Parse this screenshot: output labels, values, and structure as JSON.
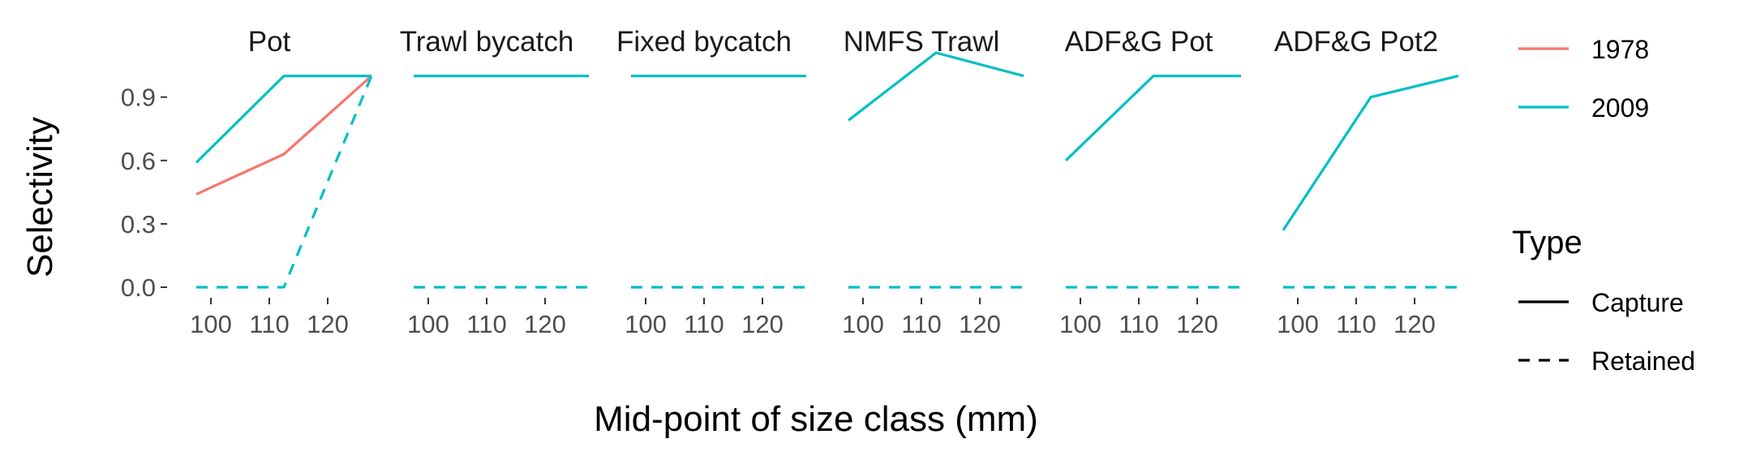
{
  "chart_data": {
    "type": "line",
    "xlabel": "Mid-point of size class (mm)",
    "ylabel": "Selectivity",
    "xlim": [
      92.5,
      127.5
    ],
    "ylim": [
      -0.05,
      1.11
    ],
    "x_ticks": [
      100,
      110,
      120
    ],
    "y_ticks": [
      0.0,
      0.3,
      0.6,
      0.9
    ],
    "y_tick_labels": [
      "0.0",
      "0.3",
      "0.6",
      "0.9"
    ],
    "grid": false,
    "x": [
      97.5,
      112.5,
      127.5
    ],
    "panels": [
      {
        "title": "Pot",
        "series": [
          {
            "year": "1978",
            "type": "Capture",
            "values": [
              0.44,
              0.63,
              1.0
            ]
          },
          {
            "year": "2009",
            "type": "Capture",
            "values": [
              0.59,
              1.0,
              1.0
            ]
          },
          {
            "year": "2009",
            "type": "Retained",
            "values": [
              0.0,
              0.0,
              1.0
            ]
          }
        ]
      },
      {
        "title": "Trawl bycatch",
        "series": [
          {
            "year": "2009",
            "type": "Capture",
            "values": [
              1.0,
              1.0,
              1.0
            ]
          },
          {
            "year": "2009",
            "type": "Retained",
            "values": [
              0.0,
              0.0,
              0.0
            ]
          }
        ]
      },
      {
        "title": "Fixed bycatch",
        "series": [
          {
            "year": "2009",
            "type": "Capture",
            "values": [
              1.0,
              1.0,
              1.0
            ]
          },
          {
            "year": "2009",
            "type": "Retained",
            "values": [
              0.0,
              0.0,
              0.0
            ]
          }
        ]
      },
      {
        "title": "NMFS Trawl",
        "series": [
          {
            "year": "2009",
            "type": "Capture",
            "values": [
              0.79,
              1.11,
              1.0
            ]
          },
          {
            "year": "2009",
            "type": "Retained",
            "values": [
              0.0,
              0.0,
              0.0
            ]
          }
        ]
      },
      {
        "title": "ADF&G Pot",
        "series": [
          {
            "year": "2009",
            "type": "Capture",
            "values": [
              0.6,
              1.0,
              1.0
            ]
          },
          {
            "year": "2009",
            "type": "Retained",
            "values": [
              0.0,
              0.0,
              0.0
            ]
          }
        ]
      },
      {
        "title": "ADF&G Pot2",
        "series": [
          {
            "year": "2009",
            "type": "Capture",
            "values": [
              0.27,
              0.9,
              1.0
            ]
          },
          {
            "year": "2009",
            "type": "Retained",
            "values": [
              0.0,
              0.0,
              0.0
            ]
          }
        ]
      }
    ],
    "legend": {
      "placement": "right",
      "colour_title": "",
      "colour": [
        {
          "label": "1978",
          "color": "#F8766D"
        },
        {
          "label": "2009",
          "color": "#00BFC4"
        }
      ],
      "type_title": "Type",
      "type": [
        {
          "label": "Capture",
          "dash": "solid"
        },
        {
          "label": "Retained",
          "dash": "dashed"
        }
      ]
    }
  }
}
